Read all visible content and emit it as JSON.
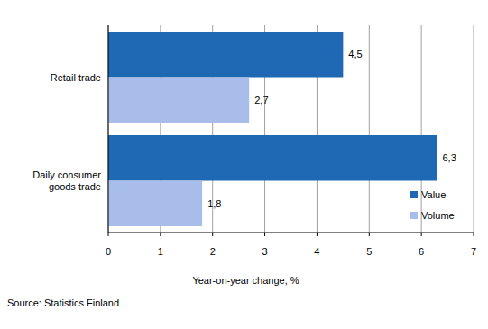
{
  "chart_data": {
    "type": "bar",
    "orientation": "horizontal",
    "categories": [
      "Retail trade",
      "Daily consumer goods trade"
    ],
    "series": [
      {
        "name": "Value",
        "color": "#1f69b4",
        "values": [
          4.5,
          6.3
        ],
        "value_labels": [
          "4,5",
          "6,3"
        ]
      },
      {
        "name": "Volume",
        "color": "#a9bdea",
        "values": [
          2.7,
          1.8
        ],
        "value_labels": [
          "2,7",
          "1,8"
        ]
      }
    ],
    "xlim": [
      0,
      7
    ],
    "xticks": [
      0,
      1,
      2,
      3,
      4,
      5,
      6,
      7
    ],
    "x_label": "Year-on-year change, %",
    "source": "Source: Statistics Finland",
    "grid": true,
    "legend": "lower right",
    "data_labels": true
  }
}
